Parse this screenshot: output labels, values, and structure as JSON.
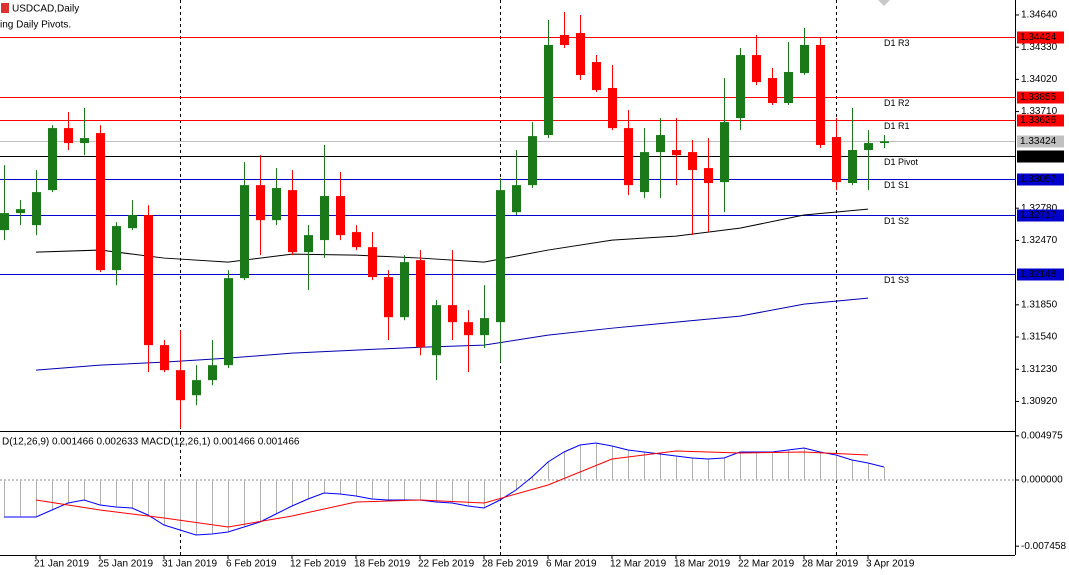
{
  "chart_data": {
    "type": "candlestick",
    "title": "USDCAD,Daily",
    "indicator_label": "ing Daily Pivots.",
    "categories": [
      null,
      null,
      "21 Jan 2019",
      null,
      null,
      null,
      "25 Jan 2019",
      null,
      null,
      null,
      "31 Jan 2019",
      null,
      null,
      null,
      "6 Feb 2019",
      null,
      null,
      null,
      "12 Feb 2019",
      null,
      null,
      null,
      "18 Feb 2019",
      null,
      null,
      null,
      "22 Feb 2019",
      null,
      null,
      null,
      "28 Feb 2019",
      null,
      null,
      null,
      "6 Mar 2019",
      null,
      null,
      null,
      "12 Mar 2019",
      null,
      null,
      null,
      "18 Mar 2019",
      null,
      null,
      null,
      "22 Mar 2019",
      null,
      null,
      null,
      "28 Mar 2019",
      null,
      null,
      null,
      "3 Apr 2019",
      null
    ],
    "open": [
      1.32569,
      1.32733,
      1.32617,
      1.32954,
      1.33551,
      1.33407,
      1.33503,
      1.32184,
      1.32588,
      1.32714,
      1.31462,
      1.31221,
      1.3098,
      1.31125,
      1.31269,
      1.32107,
      1.33002,
      1.32665,
      1.32954,
      1.32357,
      1.32473,
      1.32897,
      1.3255,
      1.32405,
      1.32117,
      1.31731,
      1.3228,
      1.31365,
      1.31847,
      1.31683,
      1.31558,
      1.31683,
      1.32742,
      1.33002,
      1.33484,
      1.34447,
      1.34466,
      1.34187,
      1.33937,
      1.33551,
      1.32935,
      1.3332,
      1.3334,
      1.3332,
      1.33166,
      1.33031,
      1.33648,
      1.34254,
      1.34033,
      1.33792,
      1.34081,
      1.34351,
      1.33465,
      1.33022,
      1.3334,
      1.33407
    ],
    "high": [
      1.33195,
      1.32858,
      1.33147,
      1.3358,
      1.33705,
      1.33744,
      1.3358,
      1.32646,
      1.32858,
      1.3281,
      1.3151,
      1.31606,
      1.31269,
      1.3151,
      1.32184,
      1.33224,
      1.33291,
      1.33166,
      1.33147,
      1.32617,
      1.33388,
      1.33128,
      1.32617,
      1.3255,
      1.32184,
      1.32328,
      1.32377,
      1.31895,
      1.32377,
      1.31799,
      1.32039,
      1.3307,
      1.3334,
      1.33609,
      1.34591,
      1.34668,
      1.3464,
      1.34254,
      1.34158,
      1.33725,
      1.33551,
      1.33648,
      1.33648,
      1.33436,
      1.33455,
      1.34033,
      1.34322,
      1.34447,
      1.34129,
      1.3438,
      1.34514,
      1.34418,
      1.33648,
      1.33744,
      1.33532,
      1.33484
    ],
    "low": [
      1.32473,
      1.32617,
      1.32521,
      1.32935,
      1.3334,
      1.33291,
      1.32165,
      1.32039,
      1.32569,
      1.31202,
      1.31202,
      1.30662,
      1.30884,
      1.31076,
      1.3124,
      1.32088,
      1.32328,
      1.32617,
      1.32328,
      1.31991,
      1.323,
      1.32473,
      1.32377,
      1.32088,
      1.3151,
      1.31702,
      1.31365,
      1.31125,
      1.3151,
      1.31202,
      1.31433,
      1.31298,
      1.32714,
      1.32974,
      1.33455,
      1.34322,
      1.34014,
      1.33898,
      1.33532,
      1.32906,
      1.32877,
      1.32877,
      1.33002,
      1.32521,
      1.3255,
      1.32742,
      1.33532,
      1.33965,
      1.33773,
      1.33773,
      1.34062,
      1.33359,
      1.32954,
      1.33002,
      1.32954,
      1.33359
    ],
    "close": [
      1.32733,
      1.32771,
      1.32935,
      1.33551,
      1.33407,
      1.33455,
      1.32184,
      1.32608,
      1.32714,
      1.31462,
      1.31221,
      1.30932,
      1.31125,
      1.31269,
      1.32107,
      1.33002,
      1.32665,
      1.32974,
      1.32357,
      1.32521,
      1.32897,
      1.32521,
      1.32405,
      1.32117,
      1.31731,
      1.32261,
      1.31442,
      1.31847,
      1.31683,
      1.31558,
      1.31722,
      1.32954,
      1.33002,
      1.33474,
      1.34351,
      1.34351,
      1.34062,
      1.33917,
      1.33551,
      1.33002,
      1.3332,
      1.33484,
      1.33291,
      1.33147,
      1.33022,
      1.33609,
      1.34254,
      1.33994,
      1.33792,
      1.34091,
      1.34351,
      1.33388,
      1.33031,
      1.3334,
      1.33407,
      1.33424
    ],
    "up_color": "#1a7a1a",
    "down_color": "#ff0000",
    "ylim": [
      1.30645,
      1.34784
    ],
    "yticks": [
      {
        "value": 1.3464,
        "label": "1.34640"
      },
      {
        "value": 1.3433,
        "label": "1.34330"
      },
      {
        "value": 1.3402,
        "label": "1.34020"
      },
      {
        "value": 1.3371,
        "label": "1.33710"
      },
      {
        "value": 1.3278,
        "label": "1.32780"
      },
      {
        "value": 1.3247,
        "label": "1.32470"
      },
      {
        "value": 1.3185,
        "label": "1.31850"
      },
      {
        "value": 1.3154,
        "label": "1.31540"
      },
      {
        "value": 1.3123,
        "label": "1.31230"
      },
      {
        "value": 1.3092,
        "label": "1.30920"
      }
    ],
    "moving_averages": [
      {
        "color": "#000000",
        "x": [
          "21 Jan 2019",
          "25 Jan 2019",
          "31 Jan 2019",
          "6 Feb 2019",
          "12 Feb 2019",
          "18 Feb 2019",
          "22 Feb 2019",
          "28 Feb 2019",
          "6 Mar 2019",
          "12 Mar 2019",
          "18 Mar 2019",
          "22 Mar 2019",
          "28 Mar 2019",
          "3 Apr 2019"
        ],
        "values": [
          1.32357,
          1.32377,
          1.323,
          1.32261,
          1.32338,
          1.32328,
          1.323,
          1.32261,
          1.32377,
          1.32473,
          1.32511,
          1.32588,
          1.32714,
          1.32771
        ]
      },
      {
        "color": "#0000b0",
        "x": [
          "21 Jan 2019",
          "25 Jan 2019",
          "31 Jan 2019",
          "6 Feb 2019",
          "12 Feb 2019",
          "18 Feb 2019",
          "22 Feb 2019",
          "28 Feb 2019",
          "6 Mar 2019",
          "12 Mar 2019",
          "18 Mar 2019",
          "22 Mar 2019",
          "28 Mar 2019",
          "3 Apr 2019"
        ],
        "values": [
          1.31221,
          1.31269,
          1.31298,
          1.31337,
          1.31385,
          1.31414,
          1.31442,
          1.31462,
          1.31558,
          1.31625,
          1.31683,
          1.31741,
          1.31857,
          1.31914
        ]
      }
    ],
    "current_price": 1.33424,
    "current_price_color": "#c0c0c0",
    "pivots": [
      {
        "label": "D1 R3",
        "value": 1.34424,
        "color": "#ff0000"
      },
      {
        "label": "D1 R2",
        "value": 1.33855,
        "color": "#ff0000"
      },
      {
        "label": "D1 R1",
        "value": 1.33626,
        "color": "#ff0000"
      },
      {
        "label": "D1 Pivot",
        "value": 1.33286,
        "color": "#000000"
      },
      {
        "label": "D1 S1",
        "value": 1.33057,
        "color": "#0000cc"
      },
      {
        "label": "D1 S2",
        "value": 1.32717,
        "color": "#0000cc"
      },
      {
        "label": "D1 S3",
        "value": 1.32148,
        "color": "#0000cc"
      }
    ],
    "macd": {
      "label": "D(12,26,9) 0.001466 0.002633 MACD(12,26,1) 0.001466 0.001466",
      "values": [
        -0.004171,
        -0.004171,
        -0.004171,
        -0.003382,
        -0.002593,
        -0.002255,
        -0.002818,
        -0.003044,
        -0.003157,
        -0.003946,
        -0.005073,
        -0.005637,
        -0.006201,
        -0.006088,
        -0.005862,
        -0.005299,
        -0.004735,
        -0.003833,
        -0.002931,
        -0.002142,
        -0.001466,
        -0.001578,
        -0.001804,
        -0.002142,
        -0.002255,
        -0.002255,
        -0.002255,
        -0.00248,
        -0.002593,
        -0.002931,
        -0.003157,
        -0.002255,
        -0.001127,
        0.000338,
        0.002029,
        0.003157,
        0.003946,
        0.004171,
        0.003833,
        0.003382,
        0.003157,
        0.002931,
        0.002706,
        0.00248,
        0.002368,
        0.00248,
        0.003157,
        0.003157,
        0.003157,
        0.003382,
        0.003608,
        0.003157,
        0.002818,
        0.002255,
        0.001917,
        0.001466
      ],
      "main_color": "#0000ff",
      "histogram_color": "#b0b0b0",
      "signal": {
        "color": "#ff0000",
        "x": [
          "21 Jan 2019",
          "25 Jan 2019",
          "31 Jan 2019",
          "6 Feb 2019",
          "12 Feb 2019",
          "18 Feb 2019",
          "22 Feb 2019",
          "28 Feb 2019",
          "6 Mar 2019",
          "12 Mar 2019",
          "18 Mar 2019",
          "22 Mar 2019",
          "28 Mar 2019",
          "3 Apr 2019"
        ],
        "values": [
          -0.002255,
          -0.003382,
          -0.004284,
          -0.005299,
          -0.004059,
          -0.00248,
          -0.002255,
          -0.002593,
          -0.000564,
          0.002368,
          0.003269,
          0.003044,
          0.003157,
          0.002818
        ]
      },
      "ylim": [
        -0.008455,
        0.005412
      ],
      "yticks": [
        0.004975,
        {
          "value": 0,
          "label": "0.000000"
        },
        -0.007458
      ]
    }
  }
}
